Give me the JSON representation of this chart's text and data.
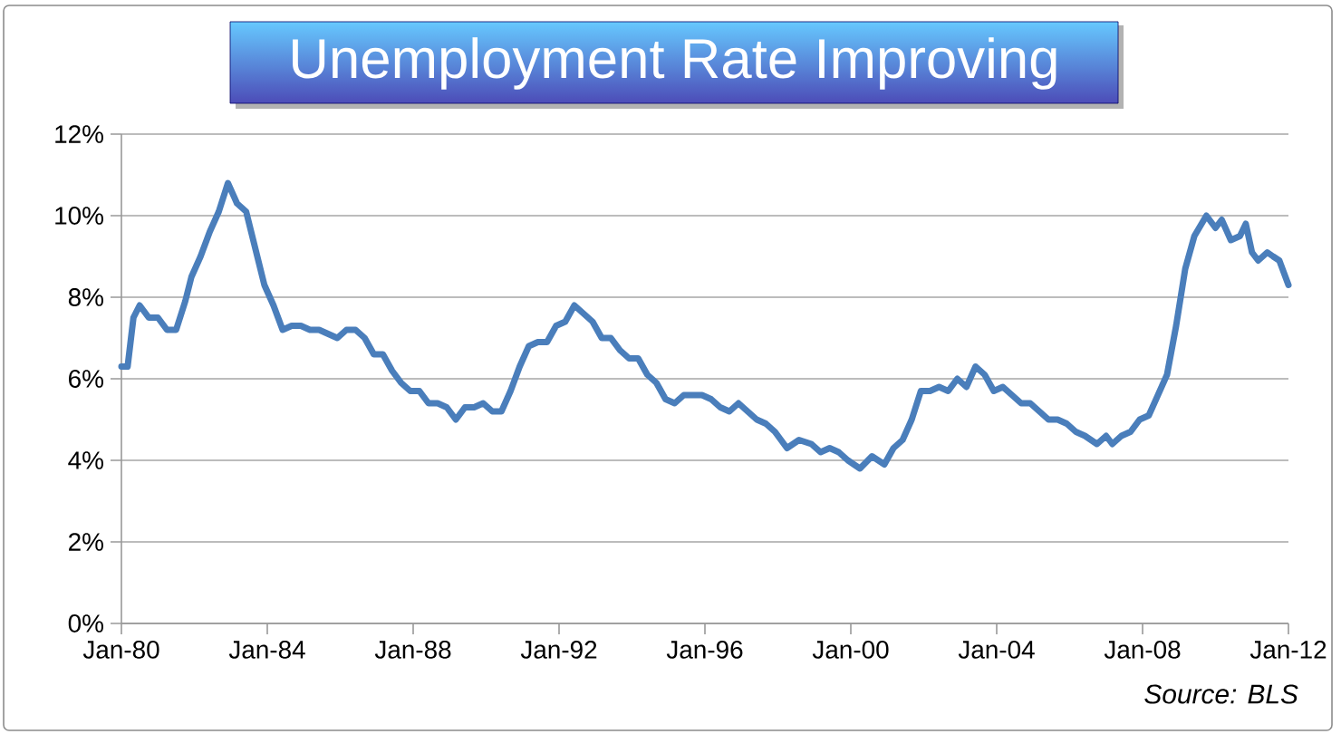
{
  "chart_data": {
    "type": "line",
    "title": "Unemployment Rate Improving",
    "annotations": [
      "Source: BLS"
    ],
    "x": [
      "1980-01",
      "1980-03",
      "1980-05",
      "1980-07",
      "1980-10",
      "1981-01",
      "1981-04",
      "1981-07",
      "1981-10",
      "1981-12",
      "1982-03",
      "1982-06",
      "1982-09",
      "1982-12",
      "1983-03",
      "1983-06",
      "1983-09",
      "1983-12",
      "1984-03",
      "1984-06",
      "1984-09",
      "1984-12",
      "1985-03",
      "1985-06",
      "1985-09",
      "1985-12",
      "1986-03",
      "1986-06",
      "1986-09",
      "1986-12",
      "1987-03",
      "1987-06",
      "1987-09",
      "1987-12",
      "1988-03",
      "1988-06",
      "1988-09",
      "1988-12",
      "1989-03",
      "1989-06",
      "1989-09",
      "1989-12",
      "1990-03",
      "1990-06",
      "1990-09",
      "1990-12",
      "1991-03",
      "1991-06",
      "1991-09",
      "1991-12",
      "1992-03",
      "1992-06",
      "1992-09",
      "1992-12",
      "1993-03",
      "1993-06",
      "1993-09",
      "1993-12",
      "1994-03",
      "1994-06",
      "1994-09",
      "1994-12",
      "1995-03",
      "1995-06",
      "1995-09",
      "1995-12",
      "1996-03",
      "1996-06",
      "1996-09",
      "1996-12",
      "1997-03",
      "1997-06",
      "1997-09",
      "1997-12",
      "1998-04",
      "1998-08",
      "1998-12",
      "1999-03",
      "1999-06",
      "1999-09",
      "1999-12",
      "2000-04",
      "2000-08",
      "2000-12",
      "2001-03",
      "2001-06",
      "2001-09",
      "2001-12",
      "2002-03",
      "2002-06",
      "2002-09",
      "2002-12",
      "2003-03",
      "2003-06",
      "2003-09",
      "2003-12",
      "2004-03",
      "2004-06",
      "2004-09",
      "2004-12",
      "2005-03",
      "2005-06",
      "2005-09",
      "2005-12",
      "2006-03",
      "2006-06",
      "2006-10",
      "2007-01",
      "2007-03",
      "2007-06",
      "2007-09",
      "2007-12",
      "2008-03",
      "2008-06",
      "2008-09",
      "2008-12",
      "2009-03",
      "2009-06",
      "2009-10",
      "2010-01",
      "2010-03",
      "2010-06",
      "2010-09",
      "2010-11",
      "2011-01",
      "2011-03",
      "2011-06",
      "2011-08",
      "2011-10",
      "2012-01"
    ],
    "values": [
      6.3,
      6.3,
      7.5,
      7.8,
      7.5,
      7.5,
      7.2,
      7.2,
      7.9,
      8.5,
      9.0,
      9.6,
      10.1,
      10.8,
      10.3,
      10.1,
      9.2,
      8.3,
      7.8,
      7.2,
      7.3,
      7.3,
      7.2,
      7.2,
      7.1,
      7.0,
      7.2,
      7.2,
      7.0,
      6.6,
      6.6,
      6.2,
      5.9,
      5.7,
      5.7,
      5.4,
      5.4,
      5.3,
      5.0,
      5.3,
      5.3,
      5.4,
      5.2,
      5.2,
      5.7,
      6.3,
      6.8,
      6.9,
      6.9,
      7.3,
      7.4,
      7.8,
      7.6,
      7.4,
      7.0,
      7.0,
      6.7,
      6.5,
      6.5,
      6.1,
      5.9,
      5.5,
      5.4,
      5.6,
      5.6,
      5.6,
      5.5,
      5.3,
      5.2,
      5.4,
      5.2,
      5.0,
      4.9,
      4.7,
      4.3,
      4.5,
      4.4,
      4.2,
      4.3,
      4.2,
      4.0,
      3.8,
      4.1,
      3.9,
      4.3,
      4.5,
      5.0,
      5.7,
      5.7,
      5.8,
      5.7,
      6.0,
      5.8,
      6.3,
      6.1,
      5.7,
      5.8,
      5.6,
      5.4,
      5.4,
      5.2,
      5.0,
      5.0,
      4.9,
      4.7,
      4.6,
      4.4,
      4.6,
      4.4,
      4.6,
      4.7,
      5.0,
      5.1,
      5.6,
      6.1,
      7.3,
      8.7,
      9.5,
      10.0,
      9.7,
      9.9,
      9.4,
      9.5,
      9.8,
      9.1,
      8.9,
      9.1,
      9.0,
      8.9,
      8.3
    ],
    "color": "#4a7ebb",
    "xlim": [
      "1980-01",
      "2012-01"
    ],
    "xticks": [
      {
        "value": "1980-01",
        "label": "Jan-80"
      },
      {
        "value": "1984-01",
        "label": "Jan-84"
      },
      {
        "value": "1988-01",
        "label": "Jan-88"
      },
      {
        "value": "1992-01",
        "label": "Jan-92"
      },
      {
        "value": "1996-01",
        "label": "Jan-96"
      },
      {
        "value": "2000-01",
        "label": "Jan-00"
      },
      {
        "value": "2004-01",
        "label": "Jan-04"
      },
      {
        "value": "2008-01",
        "label": "Jan-08"
      },
      {
        "value": "2012-01",
        "label": "Jan-12"
      }
    ],
    "ylim": [
      0,
      12
    ],
    "yticks": [
      {
        "value": 0,
        "label": "0%"
      },
      {
        "value": 2,
        "label": "2%"
      },
      {
        "value": 4,
        "label": "4%"
      },
      {
        "value": 6,
        "label": "6%"
      },
      {
        "value": 8,
        "label": "8%"
      },
      {
        "value": 10,
        "label": "10%"
      },
      {
        "value": 12,
        "label": "12%"
      }
    ],
    "grid": "y"
  }
}
